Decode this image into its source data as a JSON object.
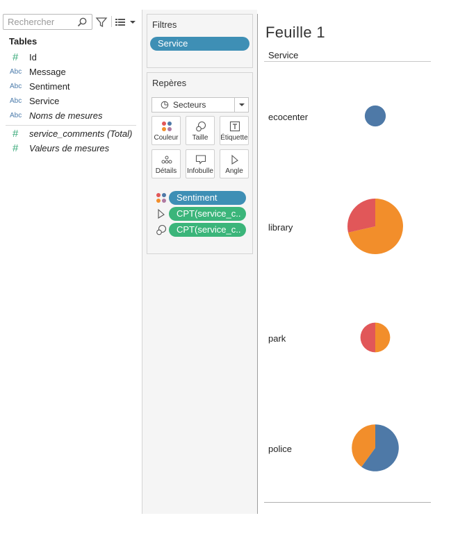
{
  "data_pane": {
    "search_placeholder": "Rechercher",
    "tables_title": "Tables",
    "fields": [
      {
        "type": "measure",
        "icon": "#",
        "label": "Id",
        "italic": false
      },
      {
        "type": "dimension",
        "icon": "Abc",
        "label": "Message",
        "italic": false
      },
      {
        "type": "dimension",
        "icon": "Abc",
        "label": "Sentiment",
        "italic": false
      },
      {
        "type": "dimension",
        "icon": "Abc",
        "label": "Service",
        "italic": false
      },
      {
        "type": "dimension",
        "icon": "Abc",
        "label": "Noms de mesures",
        "italic": true
      },
      {
        "type": "measure",
        "icon": "#",
        "label": "service_comments (Total)",
        "italic": true
      },
      {
        "type": "measure",
        "icon": "#",
        "label": "Valeurs de mesures",
        "italic": true
      }
    ]
  },
  "filters": {
    "title": "Filtres",
    "pill": "Service"
  },
  "marks": {
    "title": "Repères",
    "mark_type": "Secteurs",
    "buttons": {
      "color": "Couleur",
      "size": "Taille",
      "label": "Étiquette",
      "detail": "Détails",
      "tooltip": "Infobulle",
      "angle": "Angle"
    },
    "pills": {
      "color_pill": "Sentiment",
      "angle_pill": "CPT(service_c..",
      "size_pill": "CPT(service_c.."
    }
  },
  "sheet": {
    "title": "Feuille 1",
    "column_header": "Service"
  },
  "colors": {
    "blue": "#4e79a7",
    "orange": "#f28e2b",
    "red": "#e15759",
    "pill_blue": "#3e8fb5",
    "pill_green": "#3bb57a"
  },
  "chart_data": {
    "type": "pie",
    "categories": [
      "ecocenter",
      "library",
      "park",
      "police"
    ],
    "series": [
      {
        "color": "#4e79a7",
        "values": [
          1,
          0,
          0,
          3
        ]
      },
      {
        "color": "#f28e2b",
        "values": [
          0,
          5,
          1,
          2
        ]
      },
      {
        "color": "#e15759",
        "values": [
          0,
          2,
          1,
          0
        ]
      }
    ],
    "size_measure_totals": [
      1,
      7,
      2,
      5
    ]
  }
}
